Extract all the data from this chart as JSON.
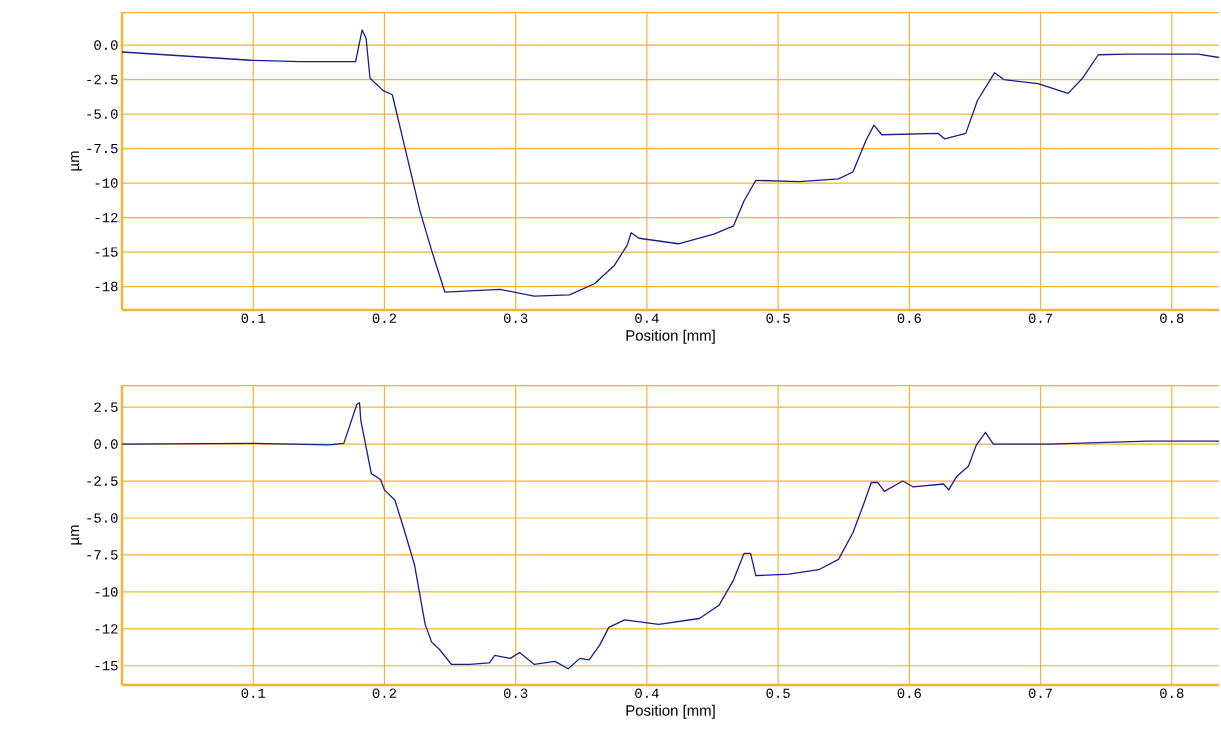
{
  "chart_data": [
    {
      "type": "line",
      "xlabel": "Position [mm]",
      "ylabel": "µm",
      "grid": true,
      "xlim": [
        0,
        0.836
      ],
      "ylim": [
        -19.2,
        2.4
      ],
      "xticks": [
        0.1,
        0.2,
        0.3,
        0.4,
        0.5,
        0.6,
        0.7,
        0.8
      ],
      "yticks": [
        {
          "value": 0,
          "label": "0.0"
        },
        -2.5,
        {
          "value": -5,
          "label": "-5.0"
        },
        -7.5,
        -10,
        {
          "value": -12.5,
          "label": "-12"
        },
        -15,
        {
          "value": -17.5,
          "label": "-18"
        }
      ],
      "series": [
        {
          "color": "#1c1c8c",
          "x": [
            0.0,
            0.098,
            0.136,
            0.178,
            0.183,
            0.186,
            0.189,
            0.199,
            0.206,
            0.216,
            0.227,
            0.236,
            0.246,
            0.288,
            0.314,
            0.341,
            0.36,
            0.375,
            0.385,
            0.388,
            0.394,
            0.424,
            0.451,
            0.466,
            0.474,
            0.483,
            0.516,
            0.546,
            0.557,
            0.567,
            0.573,
            0.579,
            0.622,
            0.627,
            0.643,
            0.652,
            0.665,
            0.672,
            0.698,
            0.721,
            0.732,
            0.744,
            0.767,
            0.82,
            0.836
          ],
          "values": [
            -0.5,
            -1.1,
            -1.2,
            -1.2,
            1.1,
            0.5,
            -2.4,
            -3.3,
            -3.6,
            -7.6,
            -12,
            -14.9,
            -17.9,
            -17.7,
            -18.2,
            -18.1,
            -17.3,
            -16.0,
            -14.5,
            -13.6,
            -14.0,
            -14.4,
            -13.7,
            -13.1,
            -11.3,
            -9.8,
            -9.9,
            -9.7,
            -9.2,
            -6.9,
            -5.8,
            -6.5,
            -6.4,
            -6.8,
            -6.4,
            -4.0,
            -2.0,
            -2.5,
            -2.8,
            -3.5,
            -2.4,
            -0.7,
            -0.65,
            -0.65,
            -0.9
          ]
        }
      ]
    },
    {
      "type": "line",
      "xlabel": "Position [mm]",
      "ylabel": "µm",
      "grid": true,
      "xlim": [
        0,
        0.836
      ],
      "ylim": [
        -16.3,
        4.0
      ],
      "xticks": [
        0.1,
        0.2,
        0.3,
        0.4,
        0.5,
        0.6,
        0.7,
        0.8
      ],
      "yticks": [
        2.5,
        {
          "value": 0,
          "label": "0.0"
        },
        -2.5,
        {
          "value": -5,
          "label": "-5.0"
        },
        -7.5,
        -10,
        {
          "value": -12.5,
          "label": "-12"
        },
        -15
      ],
      "series": [
        {
          "color": "#1c1c8c",
          "x": [
            0.0,
            0.098,
            0.158,
            0.169,
            0.173,
            0.179,
            0.181,
            0.182,
            0.19,
            0.197,
            0.2,
            0.208,
            0.215,
            0.223,
            0.231,
            0.236,
            0.242,
            0.251,
            0.265,
            0.28,
            0.284,
            0.296,
            0.303,
            0.314,
            0.33,
            0.34,
            0.349,
            0.356,
            0.364,
            0.371,
            0.383,
            0.409,
            0.44,
            0.455,
            0.466,
            0.474,
            0.479,
            0.483,
            0.508,
            0.531,
            0.546,
            0.557,
            0.565,
            0.571,
            0.576,
            0.581,
            0.595,
            0.603,
            0.626,
            0.63,
            0.636,
            0.645,
            0.651,
            0.658,
            0.664,
            0.706,
            0.782,
            0.836
          ],
          "values": [
            0,
            0.05,
            -0.05,
            0.05,
            1.1,
            2.7,
            2.8,
            1.6,
            -2.0,
            -2.4,
            -3.1,
            -3.8,
            -5.8,
            -8.2,
            -12.2,
            -13.4,
            -13.9,
            -14.9,
            -14.9,
            -14.8,
            -14.3,
            -14.5,
            -14.1,
            -14.9,
            -14.7,
            -15.2,
            -14.5,
            -14.6,
            -13.6,
            -12.4,
            -11.9,
            -12.2,
            -11.8,
            -10.9,
            -9.2,
            -7.4,
            -7.4,
            -8.9,
            -8.8,
            -8.5,
            -7.8,
            -6.0,
            -4.1,
            -2.6,
            -2.6,
            -3.2,
            -2.5,
            -2.9,
            -2.7,
            -3.1,
            -2.2,
            -1.5,
            -0.07,
            0.8,
            0,
            0,
            0.2,
            0.2
          ]
        }
      ]
    }
  ]
}
